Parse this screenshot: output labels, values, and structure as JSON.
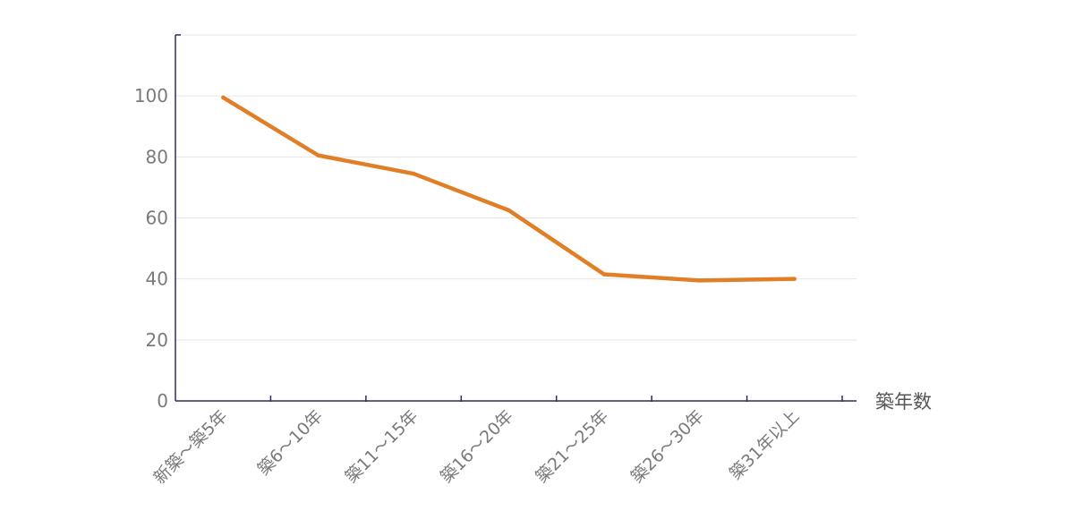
{
  "chart_data": {
    "type": "line",
    "title": "",
    "xlabel": "築年数",
    "ylabel": "",
    "categories": [
      "新築～築5年",
      "築6～10年",
      "築11～15年",
      "築16～20年",
      "築21～25年",
      "築26～30年",
      "築31年以上"
    ],
    "series": [
      {
        "values": [
          99.5,
          80.5,
          74.5,
          62.5,
          41.5,
          39.5,
          40
        ]
      }
    ],
    "ylim": [
      0,
      120
    ],
    "yticks": [
      0,
      20,
      40,
      60,
      80,
      100
    ],
    "grid": true,
    "colors": {
      "line": "#e07f26",
      "axis": "#2b2d5c",
      "grid": "#e6e6e6",
      "text": "#7a7a7a"
    }
  }
}
